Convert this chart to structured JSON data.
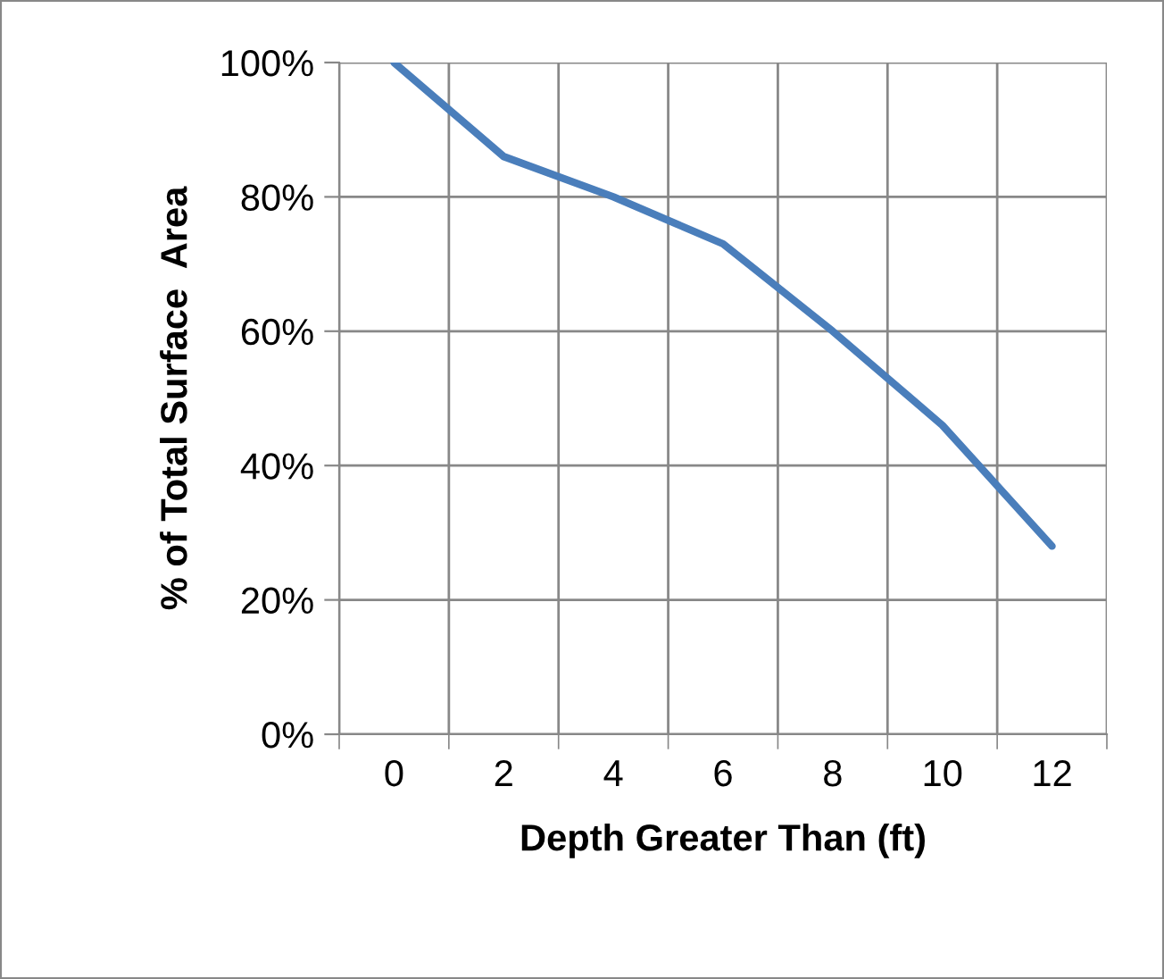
{
  "chart_data": {
    "type": "line",
    "xlabel": "Depth Greater Than (ft)",
    "ylabel": "% of Total Surface  Area",
    "categories": [
      "0",
      "2",
      "4",
      "6",
      "8",
      "10",
      "12"
    ],
    "series": [
      {
        "color": "#4a7ebb",
        "values": [
          100,
          86,
          80,
          73,
          60,
          46,
          28
        ]
      }
    ],
    "ylim": [
      0,
      100
    ],
    "yticks": [
      {
        "value": 0,
        "label": "0%"
      },
      {
        "value": 20,
        "label": "20%"
      },
      {
        "value": 40,
        "label": "40%"
      },
      {
        "value": 60,
        "label": "60%"
      },
      {
        "value": 80,
        "label": "80%"
      },
      {
        "value": 100,
        "label": "100%"
      }
    ],
    "grid": true,
    "legend": false,
    "marker": "none",
    "line_style": "solid"
  }
}
